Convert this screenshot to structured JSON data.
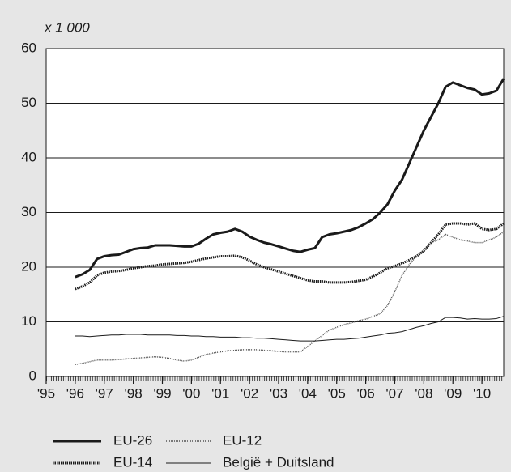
{
  "chart_data": {
    "type": "line",
    "y_unit_label": "x 1 000",
    "x": [
      1996,
      1996.25,
      1996.5,
      1996.75,
      1997,
      1997.25,
      1997.5,
      1997.75,
      1998,
      1998.25,
      1998.5,
      1998.75,
      1999,
      1999.25,
      1999.5,
      1999.75,
      2000,
      2000.25,
      2000.5,
      2000.75,
      2001,
      2001.25,
      2001.5,
      2001.75,
      2002,
      2002.25,
      2002.5,
      2002.75,
      2003,
      2003.25,
      2003.5,
      2003.75,
      2004,
      2004.25,
      2004.5,
      2004.75,
      2005,
      2005.25,
      2005.5,
      2005.75,
      2006,
      2006.25,
      2006.5,
      2006.75,
      2007,
      2007.25,
      2007.5,
      2007.75,
      2008,
      2008.25,
      2008.5,
      2008.75,
      2009,
      2009.25,
      2009.5,
      2009.75,
      2010,
      2010.25,
      2010.5,
      2010.75
    ],
    "series": [
      {
        "name": "EU-26",
        "color": "#1a1a1a",
        "width": 3,
        "dash": "none",
        "values": [
          18.2,
          18.7,
          19.5,
          21.5,
          22.0,
          22.2,
          22.3,
          22.8,
          23.3,
          23.5,
          23.6,
          24.0,
          24.0,
          24.0,
          23.9,
          23.8,
          23.8,
          24.3,
          25.2,
          26.0,
          26.3,
          26.5,
          27.0,
          26.5,
          25.6,
          25.0,
          24.5,
          24.2,
          23.8,
          23.4,
          23.0,
          22.8,
          23.2,
          23.5,
          25.5,
          26.0,
          26.2,
          26.5,
          26.8,
          27.3,
          28.0,
          28.8,
          30.0,
          31.5,
          34.0,
          36.0,
          39.0,
          42.0,
          45.0,
          47.5,
          50.0,
          53.0,
          53.8,
          53.3,
          52.8,
          52.5,
          51.6,
          51.8,
          52.3,
          54.5
        ]
      },
      {
        "name": "EU-14",
        "color": "#1a1a1a",
        "width": 3,
        "dash": "1.5 1",
        "values": [
          16.0,
          16.5,
          17.2,
          18.5,
          19.0,
          19.2,
          19.3,
          19.5,
          19.8,
          20.0,
          20.2,
          20.3,
          20.5,
          20.6,
          20.7,
          20.8,
          21.0,
          21.3,
          21.6,
          21.8,
          22.0,
          22.0,
          22.1,
          21.8,
          21.2,
          20.5,
          20.0,
          19.6,
          19.2,
          18.8,
          18.4,
          18.0,
          17.6,
          17.4,
          17.4,
          17.2,
          17.2,
          17.2,
          17.3,
          17.5,
          17.7,
          18.3,
          19.0,
          19.8,
          20.2,
          20.7,
          21.3,
          22.0,
          23.0,
          24.5,
          26.0,
          27.8,
          28.0,
          28.0,
          27.8,
          28.0,
          27.0,
          26.8,
          27.0,
          28.0
        ]
      },
      {
        "name": "EU-12",
        "color": "#555555",
        "width": 1.5,
        "dash": "1 1",
        "values": [
          2.2,
          2.4,
          2.7,
          3.0,
          3.0,
          3.0,
          3.1,
          3.2,
          3.3,
          3.4,
          3.5,
          3.6,
          3.5,
          3.3,
          3.0,
          2.8,
          3.0,
          3.5,
          4.0,
          4.3,
          4.5,
          4.7,
          4.8,
          4.9,
          4.9,
          4.9,
          4.8,
          4.7,
          4.6,
          4.5,
          4.5,
          4.5,
          5.5,
          6.5,
          7.5,
          8.5,
          9.0,
          9.5,
          9.8,
          10.2,
          10.5,
          11.0,
          11.5,
          13.0,
          15.5,
          18.5,
          20.5,
          22.0,
          23.0,
          24.5,
          25.0,
          26.0,
          25.5,
          25.0,
          24.8,
          24.5,
          24.5,
          25.0,
          25.5,
          26.5
        ]
      },
      {
        "name": "België + Duitsland",
        "color": "#1a1a1a",
        "width": 1,
        "dash": "none",
        "values": [
          7.4,
          7.4,
          7.3,
          7.4,
          7.5,
          7.6,
          7.6,
          7.7,
          7.7,
          7.7,
          7.6,
          7.6,
          7.6,
          7.6,
          7.5,
          7.5,
          7.4,
          7.4,
          7.3,
          7.3,
          7.2,
          7.2,
          7.2,
          7.1,
          7.1,
          7.0,
          7.0,
          6.9,
          6.8,
          6.7,
          6.6,
          6.5,
          6.5,
          6.5,
          6.6,
          6.7,
          6.8,
          6.8,
          6.9,
          7.0,
          7.2,
          7.4,
          7.6,
          7.9,
          8.0,
          8.2,
          8.6,
          9.0,
          9.3,
          9.7,
          10.0,
          10.8,
          10.8,
          10.7,
          10.5,
          10.6,
          10.5,
          10.5,
          10.6,
          11.0
        ]
      }
    ],
    "xlim": [
      1995,
      2010.75
    ],
    "xticks": [
      {
        "value": 1995,
        "label": "'95"
      },
      {
        "value": 1996,
        "label": "'96"
      },
      {
        "value": 1997,
        "label": "'97"
      },
      {
        "value": 1998,
        "label": "'98"
      },
      {
        "value": 1999,
        "label": "'99"
      },
      {
        "value": 2000,
        "label": "'00"
      },
      {
        "value": 2001,
        "label": "'01"
      },
      {
        "value": 2002,
        "label": "'02"
      },
      {
        "value": 2003,
        "label": "'03"
      },
      {
        "value": 2004,
        "label": "'04"
      },
      {
        "value": 2005,
        "label": "'05"
      },
      {
        "value": 2006,
        "label": "'06"
      },
      {
        "value": 2007,
        "label": "'07"
      },
      {
        "value": 2008,
        "label": "'08"
      },
      {
        "value": 2009,
        "label": "'09"
      },
      {
        "value": 2010,
        "label": "'10"
      }
    ],
    "ylim": [
      0,
      60
    ],
    "yticks": [
      0,
      10,
      20,
      30,
      40,
      50,
      60
    ],
    "grid": true
  }
}
